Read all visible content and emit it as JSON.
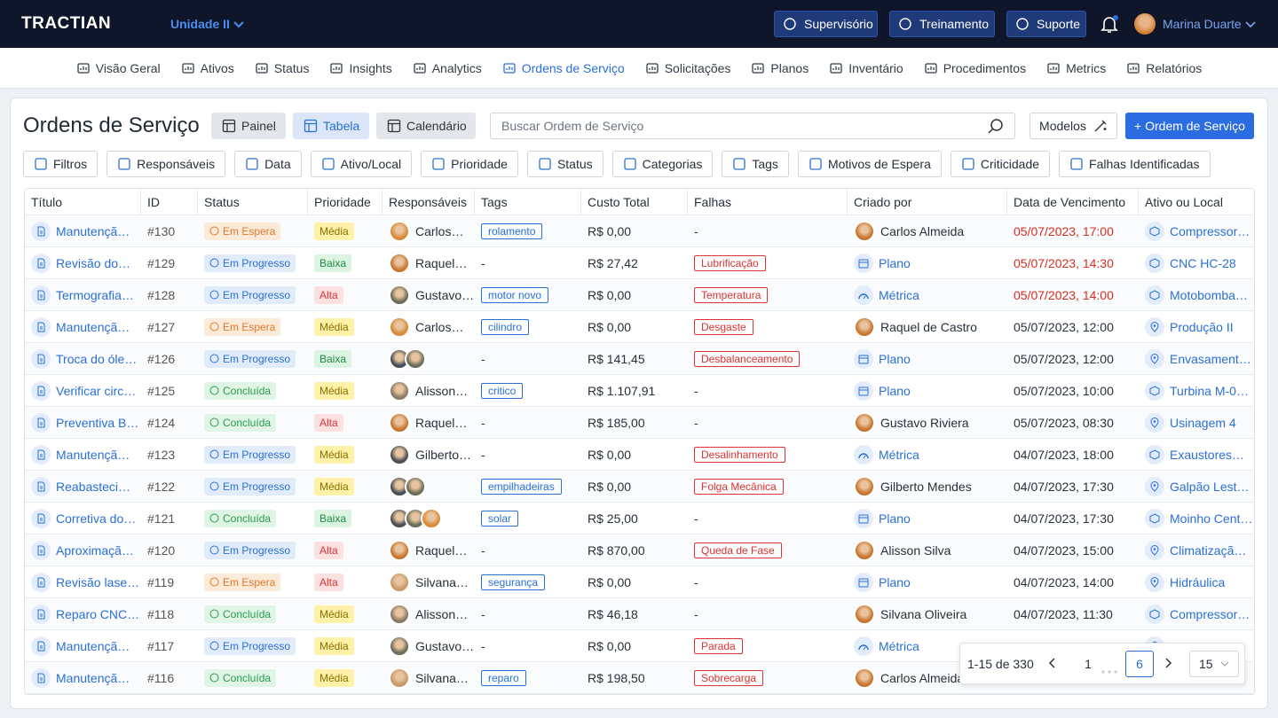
{
  "header": {
    "logo": "TRACTIAN",
    "unit": "Unidade II",
    "buttons": [
      "Supervisório",
      "Treinamento",
      "Suporte"
    ],
    "user": "Marina Duarte"
  },
  "nav": {
    "active": 5,
    "items": [
      "Visão Geral",
      "Ativos",
      "Status",
      "Insights",
      "Analytics",
      "Ordens de Serviço",
      "Solicitações",
      "Planos",
      "Inventário",
      "Procedimentos",
      "Metrics",
      "Relatórios"
    ]
  },
  "page": {
    "title": "Ordens de Serviço",
    "views": [
      "Painel",
      "Tabela",
      "Calendário"
    ],
    "active_view": 1,
    "search": "Buscar Ordem de Serviço",
    "templates": "Modelos",
    "new": "+ Ordem de Serviço"
  },
  "filters": [
    "Filtros",
    "Responsáveis",
    "Data",
    "Ativo/Local",
    "Prioridade",
    "Status",
    "Categorias",
    "Tags",
    "Motivos de Espera",
    "Criticidade",
    "Falhas Identificadas"
  ],
  "table": {
    "columns": [
      "Título",
      "ID",
      "Status",
      "Prioridade",
      "Responsáveis",
      "Tags",
      "Custo Total",
      "Falhas",
      "Criado por",
      "Data de Vencimento",
      "Ativo ou Local"
    ],
    "rows": [
      {
        "title": "Manutençã…",
        "id": "#130",
        "status": "Em Espera",
        "priority": "Média",
        "avatars": [
          "#d98a3a"
        ],
        "resp": "Carlos…",
        "tag": "rolamento",
        "cost": "R$ 0,00",
        "fault": "-",
        "creator_kind": "person",
        "creator": "Carlos Almeida",
        "due": "05/07/2023, 17:00",
        "late": true,
        "asset_kind": "asset",
        "asset": "Compressor…"
      },
      {
        "title": "Revisão do…",
        "id": "#129",
        "status": "Em Progresso",
        "priority": "Baixa",
        "avatars": [
          "#c9772f"
        ],
        "resp": "Raquel…",
        "tag": "-",
        "cost": "R$ 27,42",
        "fault": "Lubrificação",
        "creator_kind": "plan",
        "creator": "Plano",
        "due": "05/07/2023, 14:30",
        "late": true,
        "asset_kind": "asset",
        "asset": "CNC HC-28"
      },
      {
        "title": "Termografia…",
        "id": "#128",
        "status": "Em Progresso",
        "priority": "Alta",
        "avatars": [
          "#6b6e5a"
        ],
        "resp": "Gustavo…",
        "tag": "motor novo",
        "cost": "R$ 0,00",
        "fault": "Temperatura",
        "creator_kind": "metric",
        "creator": "Métrica",
        "due": "05/07/2023, 14:00",
        "late": true,
        "asset_kind": "asset",
        "asset": "Motobomba…"
      },
      {
        "title": "Manutençã…",
        "id": "#127",
        "status": "Em Espera",
        "priority": "Média",
        "avatars": [
          "#d98a3a"
        ],
        "resp": "Carlos…",
        "tag": "cilindro",
        "cost": "R$ 0,00",
        "fault": "Desgaste",
        "creator_kind": "person",
        "creator": "Raquel de Castro",
        "due": "05/07/2023, 12:00",
        "late": false,
        "asset_kind": "location",
        "asset": "Produção II"
      },
      {
        "title": "Troca do óle…",
        "id": "#126",
        "status": "Em Progresso",
        "priority": "Baixa",
        "avatars": [
          "#4a4f55",
          "#6b6e5a"
        ],
        "resp": null,
        "tag": "-",
        "cost": "R$ 141,45",
        "fault": "Desbalanceamento",
        "creator_kind": "plan",
        "creator": "Plano",
        "due": "05/07/2023, 12:00",
        "late": false,
        "asset_kind": "location",
        "asset": "Envasament…"
      },
      {
        "title": "Verificar circ…",
        "id": "#125",
        "status": "Concluída",
        "priority": "Média",
        "avatars": [
          "#8a7a66"
        ],
        "resp": "Alisson…",
        "tag": "critico",
        "cost": "R$ 1.107,91",
        "fault": "-",
        "creator_kind": "plan",
        "creator": "Plano",
        "due": "05/07/2023, 10:00",
        "late": false,
        "asset_kind": "asset",
        "asset": "Turbina M-0…"
      },
      {
        "title": "Preventiva B…",
        "id": "#124",
        "status": "Concluída",
        "priority": "Alta",
        "avatars": [
          "#c9772f"
        ],
        "resp": "Raquel…",
        "tag": "-",
        "cost": "R$ 185,00",
        "fault": "-",
        "creator_kind": "person",
        "creator": "Gustavo Riviera",
        "due": "05/07/2023, 08:30",
        "late": false,
        "asset_kind": "location",
        "asset": "Usinagem 4"
      },
      {
        "title": "Manutençã…",
        "id": "#123",
        "status": "Em Progresso",
        "priority": "Média",
        "avatars": [
          "#4a4f55"
        ],
        "resp": "Gilberto…",
        "tag": "-",
        "cost": "R$ 0,00",
        "fault": "Desalinhamento",
        "creator_kind": "metric",
        "creator": "Métrica",
        "due": "04/07/2023, 18:00",
        "late": false,
        "asset_kind": "asset",
        "asset": "Exaustores…"
      },
      {
        "title": "Reabasteci…",
        "id": "#122",
        "status": "Em Progresso",
        "priority": "Média",
        "avatars": [
          "#4a4f55",
          "#6b6e5a"
        ],
        "resp": null,
        "tag": "empilhadeiras",
        "cost": "R$ 0,00",
        "fault": "Folga Mecânica",
        "creator_kind": "person",
        "creator": "Gilberto Mendes",
        "due": "04/07/2023, 17:30",
        "late": false,
        "asset_kind": "location",
        "asset": "Galpão Lest…"
      },
      {
        "title": "Corretiva do…",
        "id": "#121",
        "status": "Concluída",
        "priority": "Baixa",
        "avatars": [
          "#4a4f55",
          "#6b6e5a",
          "#d98a3a"
        ],
        "resp": null,
        "tag": "solar",
        "cost": "R$ 25,00",
        "fault": "-",
        "creator_kind": "plan",
        "creator": "Plano",
        "due": "04/07/2023, 17:30",
        "late": false,
        "asset_kind": "asset",
        "asset": "Moinho Cent…"
      },
      {
        "title": "Aproximaçã…",
        "id": "#120",
        "status": "Em Progresso",
        "priority": "Alta",
        "avatars": [
          "#c9772f"
        ],
        "resp": "Raquel…",
        "tag": "-",
        "cost": "R$ 870,00",
        "fault": "Queda de Fase",
        "creator_kind": "person",
        "creator": "Alisson Silva",
        "due": "04/07/2023, 15:00",
        "late": false,
        "asset_kind": "location",
        "asset": "Climatizaçã…"
      },
      {
        "title": "Revisão lase…",
        "id": "#119",
        "status": "Em Espera",
        "priority": "Alta",
        "avatars": [
          "#c99a6a"
        ],
        "resp": "Silvana…",
        "tag": "segurança",
        "cost": "R$ 0,00",
        "fault": "-",
        "creator_kind": "plan",
        "creator": "Plano",
        "due": "04/07/2023, 14:00",
        "late": false,
        "asset_kind": "location",
        "asset": "Hidráulica"
      },
      {
        "title": "Reparo CNC…",
        "id": "#118",
        "status": "Concluída",
        "priority": "Média",
        "avatars": [
          "#8a7a66"
        ],
        "resp": "Alisson…",
        "tag": "-",
        "cost": "R$ 46,18",
        "fault": "-",
        "creator_kind": "person",
        "creator": "Silvana Oliveira",
        "due": "04/07/2023, 11:30",
        "late": false,
        "asset_kind": "asset",
        "asset": "Compressor…"
      },
      {
        "title": "Manutençã…",
        "id": "#117",
        "status": "Em Progresso",
        "priority": "Média",
        "avatars": [
          "#6b6e5a"
        ],
        "resp": "Gustavo…",
        "tag": "-",
        "cost": "R$ 0,00",
        "fault": "Parada",
        "creator_kind": "metric",
        "creator": "Métrica",
        "due": null,
        "late": false,
        "asset_kind": "asset",
        "asset": null
      },
      {
        "title": "Manutençã…",
        "id": "#116",
        "status": "Concluída",
        "priority": "Média",
        "avatars": [
          "#c99a6a"
        ],
        "resp": "Silvana…",
        "tag": "reparo",
        "cost": "R$ 198,50",
        "fault": "Sobrecarga",
        "creator_kind": "person",
        "creator": "Carlos Almeida",
        "due": null,
        "late": false,
        "asset_kind": null,
        "asset": null
      }
    ]
  },
  "pagination": {
    "range": "1-15 de 330",
    "pages": [
      "1",
      "6"
    ],
    "current": 1,
    "page_size": "15"
  }
}
